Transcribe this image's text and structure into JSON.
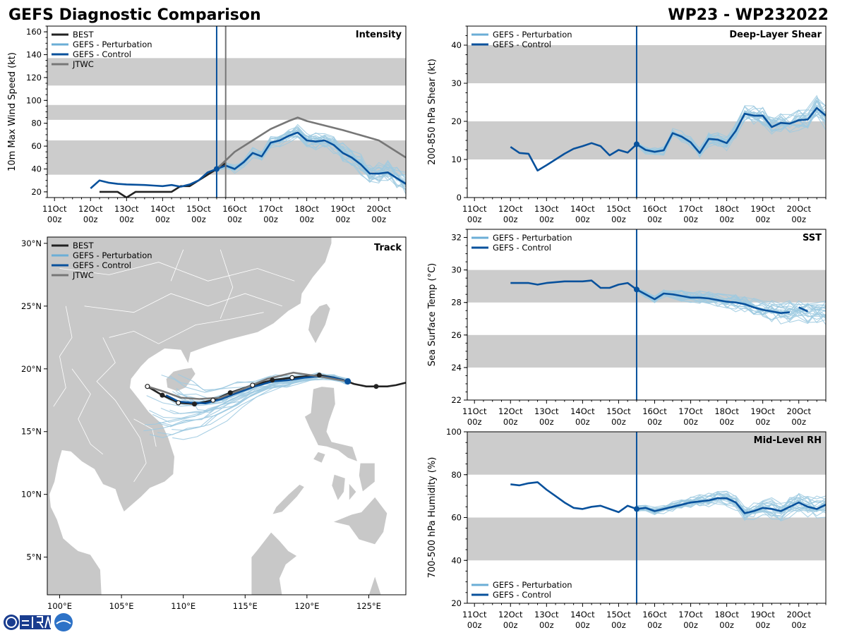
{
  "header": {
    "left_title": "GEFS Diagnostic Comparison",
    "right_title": "WP23 - WP232022"
  },
  "colors": {
    "best": "#222222",
    "perturbation": "#9ecae1",
    "perturbation_legend": "#6baed6",
    "control": "#08519c",
    "jtwc": "#777777",
    "band": "#cccccc",
    "land": "#c8c8c8"
  },
  "legend_labels": {
    "best": "BEST",
    "perturbation": "GEFS - Perturbation",
    "control": "GEFS - Control",
    "jtwc": "JTWC"
  },
  "time_axis": {
    "tick_days": [
      11,
      12,
      13,
      14,
      15,
      16,
      17,
      18,
      19,
      20
    ],
    "labels_top": [
      "11Oct",
      "12Oct",
      "13Oct",
      "14Oct",
      "15Oct",
      "16Oct",
      "17Oct",
      "18Oct",
      "19Oct",
      "20Oct"
    ],
    "labels_bottom": [
      "00z",
      "00z",
      "00z",
      "00z",
      "00z",
      "00z",
      "00z",
      "00z",
      "00z",
      "00z"
    ],
    "range": [
      10.8,
      20.75
    ],
    "init_time": 15.5
  },
  "chart_data": [
    {
      "id": "intensity",
      "type": "line",
      "title": "Intensity",
      "ylabel": "10m Max Wind Speed (kt)",
      "ylim": [
        15,
        165
      ],
      "yticks": [
        20,
        40,
        60,
        80,
        100,
        120,
        140,
        160
      ],
      "bands": [
        [
          35,
          65
        ],
        [
          83,
          96
        ],
        [
          113,
          137
        ]
      ],
      "extra_vline": 15.75,
      "series": [
        {
          "name": "BEST",
          "x": [
            12.25,
            12.75,
            13,
            13.25,
            13.5,
            14,
            14.25,
            14.5,
            14.75,
            15,
            15.25,
            15.5,
            15.75
          ],
          "y": [
            20,
            20,
            15,
            20,
            20,
            20,
            20,
            25,
            25,
            30,
            35,
            40,
            45
          ]
        },
        {
          "name": "GEFS - Control",
          "x": [
            12,
            12.25,
            12.5,
            12.75,
            13,
            13.5,
            13.75,
            14,
            14.25,
            14.5,
            14.75,
            15,
            15.25,
            15.5,
            15.75,
            16,
            16.25,
            16.5,
            16.75,
            17,
            17.25,
            17.5,
            17.75,
            18,
            18.25,
            18.5,
            18.75,
            19,
            19.25,
            19.5,
            19.75,
            20,
            20.25,
            20.5,
            20.75
          ],
          "y": [
            23,
            30,
            28,
            27,
            26.5,
            26,
            25.5,
            25,
            26,
            24.5,
            26.5,
            30,
            37,
            40,
            43,
            40,
            46,
            54,
            51,
            63,
            65,
            69,
            72,
            65,
            64,
            65,
            61,
            54,
            50,
            44,
            36,
            36,
            37,
            32,
            27
          ]
        },
        {
          "name": "JTWC",
          "x": [
            15.5,
            16,
            16.5,
            17,
            17.5,
            17.75,
            18,
            19,
            20,
            20.75
          ],
          "y": [
            40,
            55,
            65,
            75,
            82,
            85,
            82,
            74,
            65,
            50
          ]
        }
      ]
    },
    {
      "id": "shear",
      "type": "line",
      "title": "Deep-Layer Shear",
      "ylabel": "200-850 hPa Shear (kt)",
      "ylim": [
        0,
        45
      ],
      "yticks": [
        0,
        10,
        20,
        30,
        40
      ],
      "bands": [
        [
          10,
          20
        ],
        [
          30,
          40
        ]
      ],
      "series": [
        {
          "name": "GEFS - Control",
          "x": [
            12,
            12.25,
            12.5,
            12.75,
            13,
            13.25,
            13.5,
            13.75,
            14,
            14.25,
            14.5,
            14.75,
            15,
            15.25,
            15.5,
            15.75,
            16,
            16.25,
            16.5,
            16.75,
            17,
            17.25,
            17.5,
            17.75,
            18,
            18.25,
            18.5,
            18.75,
            19,
            19.25,
            19.5,
            19.75,
            20,
            20.25,
            20.5,
            20.75
          ],
          "y": [
            13.3,
            11.7,
            11.5,
            7.1,
            8.5,
            10,
            11.5,
            12.8,
            13.5,
            14.3,
            13.5,
            11.1,
            12.5,
            11.8,
            14,
            12.5,
            12,
            12.4,
            16.9,
            16,
            14.5,
            11.7,
            15.4,
            15.2,
            14.3,
            17.5,
            22,
            21.5,
            21.5,
            18.5,
            19.6,
            19.4,
            20.3,
            20.5,
            23.5,
            21.5
          ]
        }
      ]
    },
    {
      "id": "sst",
      "type": "line",
      "title": "SST",
      "ylabel": "Sea Surface Temp (°C)",
      "ylim": [
        22,
        32.5
      ],
      "yticks": [
        22,
        24,
        26,
        28,
        30,
        32
      ],
      "bands": [
        [
          24,
          26
        ],
        [
          28,
          30
        ]
      ],
      "series": [
        {
          "name": "GEFS - Control",
          "x": [
            12,
            12.25,
            12.5,
            12.75,
            13,
            13.25,
            13.5,
            13.75,
            14,
            14.25,
            14.5,
            14.75,
            15,
            15.25,
            15.5,
            15.75,
            16,
            16.25,
            16.5,
            16.75,
            17,
            17.25,
            17.5,
            17.75,
            18,
            18.25,
            18.5,
            18.75,
            19,
            19.25,
            19.5,
            19.75
          ],
          "y": [
            29.2,
            29.2,
            29.2,
            29.1,
            29.2,
            29.25,
            29.3,
            29.3,
            29.3,
            29.35,
            28.9,
            28.9,
            29.1,
            29.2,
            28.8,
            28.5,
            28.2,
            28.55,
            28.5,
            28.4,
            28.3,
            28.3,
            28.25,
            28.15,
            28.05,
            28,
            27.9,
            27.7,
            27.55,
            27.45,
            27.35,
            27.4
          ]
        },
        {
          "name": "GEFS - Control (tail)",
          "x": [
            20,
            20.25
          ],
          "y": [
            27.7,
            27.45
          ]
        }
      ]
    },
    {
      "id": "rh",
      "type": "line",
      "title": "Mid-Level RH",
      "ylabel": "700-500 hPa Humidity (%)",
      "ylim": [
        20,
        100
      ],
      "yticks": [
        20,
        40,
        60,
        80,
        100
      ],
      "bands": [
        [
          40,
          60
        ],
        [
          80,
          100
        ]
      ],
      "series": [
        {
          "name": "GEFS - Control",
          "x": [
            12,
            12.25,
            12.5,
            12.75,
            13,
            13.25,
            13.5,
            13.75,
            14,
            14.25,
            14.5,
            14.75,
            15,
            15.25,
            15.5,
            15.75,
            16,
            16.25,
            16.5,
            16.75,
            17,
            17.25,
            17.5,
            17.75,
            18,
            18.25,
            18.5,
            18.75,
            19,
            19.25,
            19.5,
            19.75,
            20,
            20.25,
            20.5,
            20.75
          ],
          "y": [
            75.5,
            75,
            76,
            76.5,
            73,
            70,
            67,
            64.5,
            64,
            65,
            65.5,
            64,
            62.5,
            65.5,
            64,
            64.5,
            63,
            64,
            65,
            66,
            67,
            67.5,
            68,
            69,
            69,
            67,
            62,
            63,
            64.5,
            64,
            63,
            65,
            67,
            65,
            64,
            66
          ]
        }
      ]
    },
    {
      "id": "track",
      "type": "map-line",
      "title": "Track",
      "xlim": [
        99,
        128
      ],
      "ylim": [
        2,
        30.5
      ],
      "x_ticks": [
        100,
        105,
        110,
        115,
        120,
        125
      ],
      "x_tick_labels": [
        "100°E",
        "105°E",
        "110°E",
        "115°E",
        "120°E",
        "125°E"
      ],
      "y_ticks": [
        5,
        10,
        15,
        20,
        25,
        30
      ],
      "y_tick_labels": [
        "5°N",
        "10°N",
        "15°N",
        "20°N",
        "25°N",
        "30°N"
      ],
      "series": [
        {
          "name": "BEST",
          "lon": [
            128,
            127.2,
            126.5,
            125.8,
            124.8,
            123.8,
            123,
            122.2,
            121,
            119.8,
            118.8,
            117.2,
            115.6,
            113.8,
            112.4,
            110.9,
            109.6,
            108.3,
            107.1
          ],
          "lat": [
            18.9,
            18.7,
            18.6,
            18.6,
            18.6,
            18.8,
            19.1,
            19.3,
            19.5,
            19.4,
            19.3,
            19.1,
            18.7,
            18.1,
            17.5,
            17.2,
            17.3,
            17.9,
            18.6
          ]
        },
        {
          "name": "GEFS - Control",
          "lon": [
            123.3,
            122.2,
            121,
            119.8,
            118.5,
            117.2,
            115.8,
            114.4,
            113.1,
            111.8,
            110.7,
            109.6,
            108.6
          ],
          "lat": [
            19,
            19.3,
            19.4,
            19.3,
            19.1,
            19,
            18.6,
            18.1,
            17.6,
            17.25,
            17.3,
            17.4,
            17.9
          ]
        },
        {
          "name": "JTWC",
          "lon": [
            123.3,
            121,
            118.9,
            116.8,
            114.8,
            113,
            111.3,
            109.8,
            108.4,
            107.1
          ],
          "lat": [
            19,
            19.4,
            19.7,
            19.2,
            18.4,
            17.7,
            17.6,
            17.7,
            18.2,
            18.6
          ]
        }
      ],
      "best_filled_points": [
        [
          125.6,
          18.6
        ],
        [
          121,
          19.5
        ],
        [
          117.2,
          19.1
        ],
        [
          113.8,
          18.1
        ],
        [
          110.9,
          17.2
        ],
        [
          108.3,
          17.9
        ]
      ],
      "best_open_points": [
        [
          118.8,
          19.3
        ],
        [
          115.6,
          18.7
        ],
        [
          112.4,
          17.5
        ],
        [
          109.6,
          17.3
        ],
        [
          107.1,
          18.6
        ]
      ],
      "init_point": [
        123.3,
        19.0
      ]
    }
  ]
}
